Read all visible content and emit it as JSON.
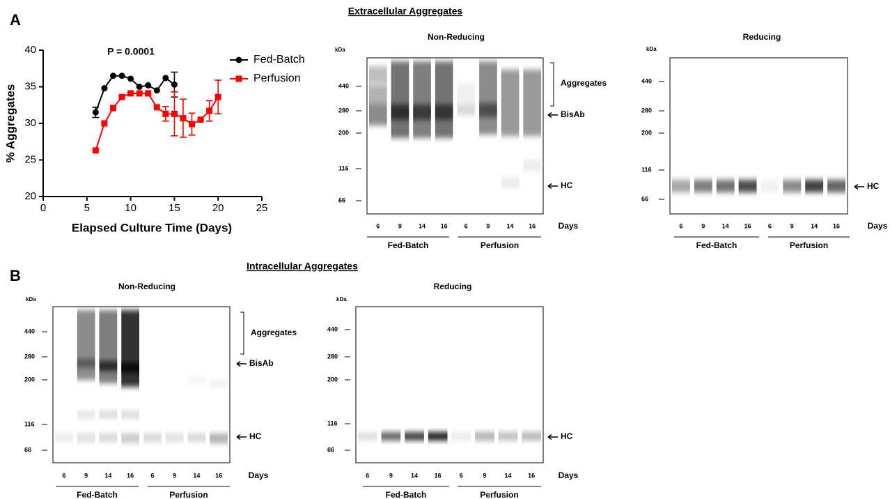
{
  "chart_data": {
    "type": "line",
    "annotation": "P = 0.0001",
    "xlabel": "Elapsed Culture Time (Days)",
    "ylabel": "% Aggregates",
    "xlim": [
      0,
      25
    ],
    "xticks": [
      0,
      5,
      10,
      15,
      20,
      25
    ],
    "ylim": [
      20,
      40
    ],
    "yticks": [
      20,
      25,
      30,
      35,
      40
    ],
    "legend": "top-right",
    "series": [
      {
        "name": "Fed-Batch",
        "color": "#000000",
        "marker": "circle",
        "x": [
          6,
          7,
          8,
          9,
          10,
          11,
          12,
          13,
          14,
          15
        ],
        "values": [
          31.5,
          34.8,
          36.5,
          36.5,
          36.1,
          35.0,
          35.2,
          34.5,
          36.2,
          35.3
        ],
        "errors": [
          0.7,
          null,
          null,
          null,
          null,
          null,
          null,
          null,
          null,
          1.7
        ]
      },
      {
        "name": "Perfusion",
        "color": "#ff0000",
        "marker": "square",
        "x": [
          6,
          7,
          8,
          9,
          10,
          11,
          12,
          13,
          14,
          15,
          16,
          17,
          18,
          19,
          20
        ],
        "values": [
          26.3,
          30.0,
          32.1,
          33.6,
          34.1,
          34.1,
          34.1,
          32.2,
          31.3,
          31.3,
          30.7,
          29.9,
          30.5,
          31.7,
          33.6
        ],
        "errors": [
          null,
          null,
          null,
          null,
          null,
          null,
          null,
          null,
          1.0,
          3.0,
          2.6,
          1.5,
          null,
          1.4,
          2.3
        ]
      }
    ]
  },
  "sections": [
    {
      "label": "A",
      "title": "Extracellular Aggregates",
      "gels": [
        {
          "title": "Non-Reducing",
          "unit": "kDa",
          "markers": [
            440,
            280,
            200,
            116,
            66
          ],
          "lanes": [
            6,
            9,
            14,
            16,
            6,
            9,
            14,
            16
          ],
          "lanes_axis": "Days",
          "groups": [
            "Fed-Batch",
            "Perfusion"
          ],
          "annotations": [
            "Aggregates",
            "BisAb",
            "HC"
          ]
        },
        {
          "title": "Reducing",
          "unit": "kDa",
          "markers": [
            440,
            280,
            200,
            116,
            66
          ],
          "lanes": [
            6,
            9,
            14,
            16,
            6,
            9,
            14,
            16
          ],
          "lanes_axis": "Days",
          "groups": [
            "Fed-Batch",
            "Perfusion"
          ],
          "annotations": [
            "HC"
          ]
        }
      ]
    },
    {
      "label": "B",
      "title": "Intracellular Aggregates",
      "gels": [
        {
          "title": "Non-Reducing",
          "unit": "kDa",
          "markers": [
            440,
            280,
            200,
            116,
            66
          ],
          "lanes": [
            6,
            9,
            14,
            16,
            6,
            9,
            14,
            16
          ],
          "lanes_axis": "Days",
          "groups": [
            "Fed-Batch",
            "Perfusion"
          ],
          "annotations": [
            "Aggregates",
            "BisAb",
            "HC"
          ]
        },
        {
          "title": "Reducing",
          "unit": "kDa",
          "markers": [
            440,
            280,
            200,
            116,
            66
          ],
          "lanes": [
            6,
            9,
            14,
            16,
            6,
            9,
            14,
            16
          ],
          "lanes_axis": "Days",
          "groups": [
            "Fed-Batch",
            "Perfusion"
          ],
          "annotations": [
            "HC"
          ]
        }
      ]
    }
  ]
}
